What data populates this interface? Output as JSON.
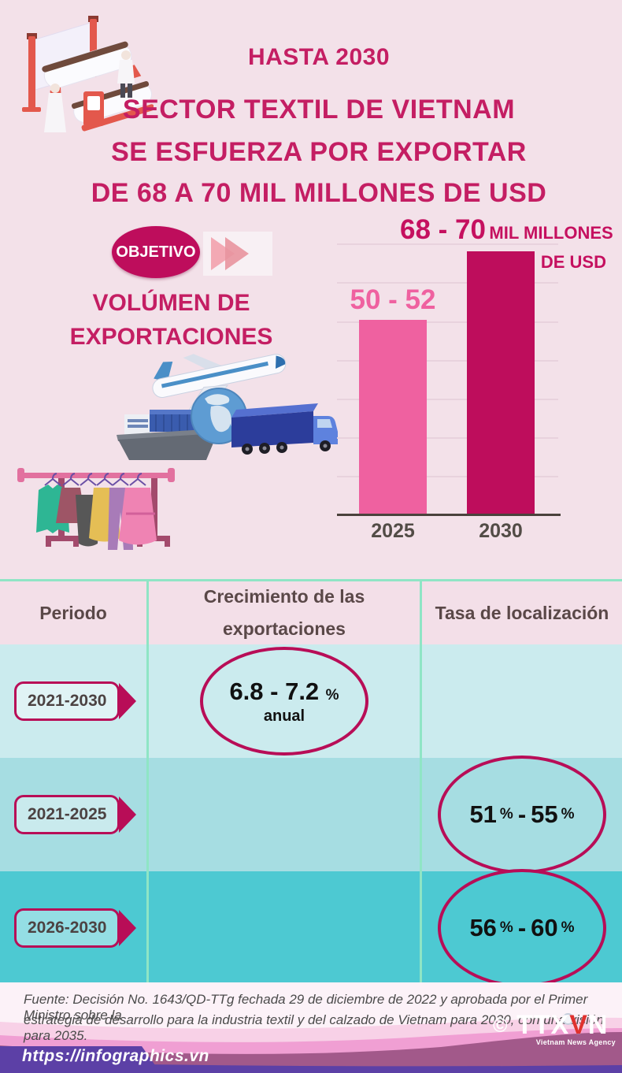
{
  "header": {
    "kicker": "HASTA 2030",
    "title_line1": "SECTOR TEXTIL DE VIETNAM",
    "title_line2": "SE ESFUERZA POR EXPORTAR",
    "title_line3": "DE 68 A 70 MIL MILLONES DE USD"
  },
  "objective": {
    "badge_label": "OBJETIVO",
    "label_line1": "VOLÚMEN DE",
    "label_line2": "EXPORTACIONES"
  },
  "chart_data": {
    "type": "bar",
    "categories": [
      "2025",
      "2030"
    ],
    "values": [
      [
        50,
        52
      ],
      [
        68,
        70
      ]
    ],
    "bar_labels": [
      "50 - 52",
      "68 - 70"
    ],
    "unit_label_inline": "MIL MILLONES",
    "unit_label_line2": "DE USD",
    "ylabel": "",
    "xlabel": "",
    "ylim": [
      0,
      70
    ],
    "grid": true,
    "legend": "none",
    "colors": [
      "#EF61A0",
      "#BE0D5C"
    ]
  },
  "table": {
    "headers": [
      "Periodo",
      "Crecimiento de las exportaciones",
      "Tasa de localización"
    ],
    "rows": [
      {
        "period": "2021-2030",
        "growth_main": "6.8 - 7.2",
        "growth_unit": "%",
        "growth_sub": "anual"
      },
      {
        "period": "2021-2025",
        "loc_from": "51",
        "loc_to": "55",
        "pct": "%",
        "sep": "-"
      },
      {
        "period": "2026-2030",
        "loc_from": "56",
        "loc_to": "60",
        "pct": "%",
        "sep": "-"
      }
    ]
  },
  "footer": {
    "source_line1": "Fuente: Decisión No. 1643/QD-TTg fechada 29 de diciembre de 2022 y aprobada por el Primer Ministro sobre la",
    "source_line2": "estrategia de desarrollo para la industria textil y del calzado de Vietnam para 2030, con una visión para 2035.",
    "url": "https://infographics.vn",
    "copyright_sign": "©",
    "logo_ttx": "TTX",
    "logo_v": "V",
    "logo_n": "N",
    "agency_sub": "Vietnam News Agency"
  },
  "icons": {
    "fast-forward-icon": "two overlapping right triangles ▶▶",
    "textile-machine-illustration": "isometric red loom with fabric rollers and two workers",
    "airplane-icon": "white-blue cargo jet",
    "globe-icon": "blue earth globe",
    "cargo-ship-icon": "container ship",
    "truck-icon": "blue semi truck",
    "clothes-rack-illustration": "pink rack with six garments"
  },
  "colors": {
    "background_pink": "#F3E1E9",
    "title_crimson": "#C41E63",
    "accent_crimson": "#BE0D5C",
    "bar_pink": "#EF61A0",
    "bar_crimson": "#BE0D5C",
    "table_header_bg": "#F3DFE8",
    "row1_bg": "#CBEBEE",
    "row2_bg": "#A6DDE2",
    "row3_bg": "#4DC9D2",
    "divider_mint": "#8FE5C5",
    "footer_light_pink": "#F8D1E7",
    "footer_pink": "#F09FD3",
    "footer_plum": "#A2598A",
    "footer_purple": "#5C40A6",
    "logo_red": "#E0312E"
  }
}
